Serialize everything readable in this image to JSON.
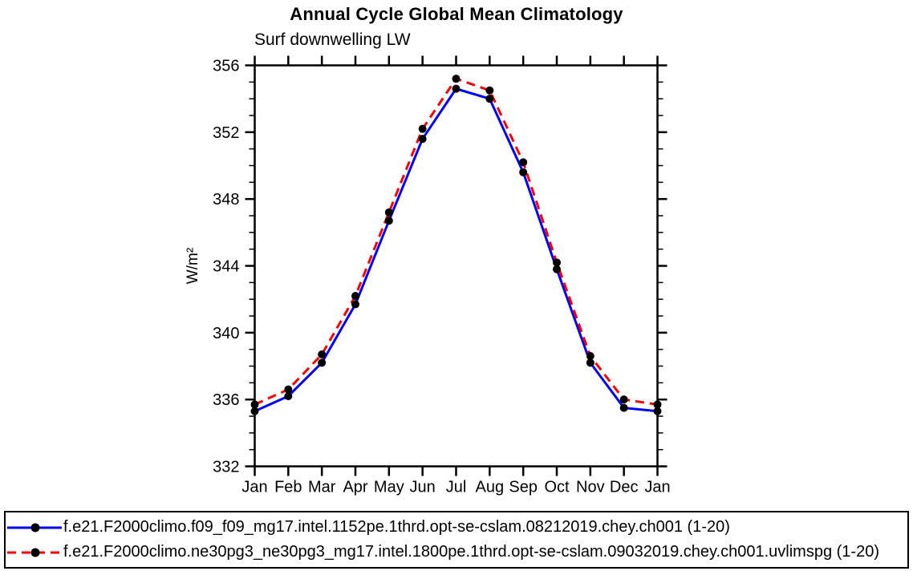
{
  "chart_data": {
    "type": "line",
    "title": "Annual Cycle Global Mean Climatology",
    "subtitle": "Surf downwelling LW",
    "ylabel": "W/m²",
    "xlabel": "",
    "categories": [
      "Jan",
      "Feb",
      "Mar",
      "Apr",
      "May",
      "Jun",
      "Jul",
      "Aug",
      "Sep",
      "Oct",
      "Nov",
      "Dec",
      "Jan"
    ],
    "series": [
      {
        "id": "f09",
        "name": "f.e21.F2000climo.f09_f09_mg17.intel.1152pe.1thrd.opt-se-cslam.08212019.chey.ch001 (1-20)",
        "color": "#0000ff",
        "line_style": "solid",
        "values": [
          335.3,
          336.2,
          338.2,
          341.7,
          346.7,
          351.6,
          354.6,
          354.0,
          349.6,
          343.8,
          338.2,
          335.5,
          335.3
        ]
      },
      {
        "id": "ne30pg3",
        "name": "f.e21.F2000climo.ne30pg3_ne30pg3_mg17.intel.1800pe.1thrd.opt-se-cslam.09032019.chey.ch001.uvlimspg (1-20)",
        "color": "#ff0000",
        "line_style": "dashed",
        "values": [
          335.7,
          336.6,
          338.7,
          342.2,
          347.2,
          352.2,
          355.2,
          354.5,
          350.2,
          344.2,
          338.6,
          336.0,
          335.7
        ]
      }
    ],
    "ylim": [
      332,
      356
    ],
    "ytick_values": [
      332,
      336,
      340,
      344,
      348,
      352,
      356
    ],
    "ytick_major_step": 4,
    "ytick_minor_step": 1,
    "marker": "filled-circle",
    "marker_color": "#000000",
    "axis_color": "#000000",
    "grid": "off",
    "legend_position": "bottom-outside-box"
  }
}
